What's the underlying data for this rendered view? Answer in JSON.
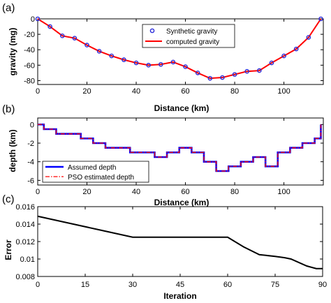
{
  "colors": {
    "assumed": "#0000ff",
    "estimated": "#ff0000",
    "synthetic": "#2b2bd9",
    "computed": "#ff0000",
    "error": "#000000"
  },
  "panels": [
    {
      "label": "(a)"
    },
    {
      "label": "(b)"
    },
    {
      "label": "(c)"
    }
  ],
  "chart_data": [
    {
      "type": "scatter",
      "xlabel": "Distance (km)",
      "ylabel": "gravity (mg)",
      "xlim": [
        0,
        116
      ],
      "ylim": [
        -85,
        0
      ],
      "xticks": [
        0,
        20,
        40,
        60,
        80,
        100
      ],
      "yticks": [
        0,
        -20,
        -40,
        -60,
        -80
      ],
      "legend_position": "top-center",
      "series": [
        {
          "name": "Synthetic gravity",
          "style": "markers",
          "x": [
            0,
            5,
            10,
            15,
            20,
            25,
            30,
            35,
            40,
            45,
            50,
            55,
            60,
            65,
            70,
            75,
            80,
            85,
            90,
            95,
            100,
            105,
            110,
            115
          ],
          "y": [
            0,
            -10,
            -22,
            -25,
            -34,
            -42,
            -48,
            -53,
            -57,
            -60,
            -59,
            -56,
            -62,
            -70,
            -77,
            -76,
            -72,
            -68,
            -67,
            -57,
            -48,
            -39,
            -24,
            0
          ]
        },
        {
          "name": "computed gravity",
          "style": "line",
          "x": [
            0,
            5,
            10,
            15,
            20,
            25,
            30,
            35,
            40,
            45,
            50,
            55,
            60,
            65,
            70,
            75,
            80,
            85,
            90,
            95,
            100,
            105,
            110,
            115
          ],
          "y": [
            0,
            -10,
            -22,
            -25,
            -34,
            -42,
            -48,
            -53,
            -57,
            -60,
            -59,
            -56,
            -62,
            -70,
            -77,
            -76,
            -72,
            -68,
            -67,
            -57,
            -48,
            -39,
            -24,
            0
          ]
        }
      ]
    },
    {
      "type": "line",
      "xlabel": "Distance (km)",
      "ylabel": "depth (km)",
      "xlim": [
        0,
        116
      ],
      "ylim": [
        -6.5,
        0.7
      ],
      "xticks": [
        0,
        20,
        40,
        60,
        80,
        100
      ],
      "yticks": [
        0,
        -2,
        -4,
        -6
      ],
      "legend_position": "bottom-left",
      "step_x": [
        0,
        2.5,
        7.5,
        12.5,
        17.5,
        22.5,
        27.5,
        32.5,
        37.5,
        42.5,
        47.5,
        52.5,
        57.5,
        62.5,
        67.5,
        72.5,
        77.5,
        82.5,
        87.5,
        92.5,
        97.5,
        102.5,
        107.5,
        112.5,
        115
      ],
      "series": [
        {
          "name": "Assumed depth",
          "style": "solid",
          "depth": [
            0,
            -0.5,
            -1.0,
            -1.0,
            -1.5,
            -2.0,
            -2.5,
            -2.5,
            -3.0,
            -3.0,
            -3.5,
            -3.0,
            -2.5,
            -3.0,
            -4.0,
            -5.0,
            -4.5,
            -4.0,
            -3.5,
            -4.5,
            -3.0,
            -2.5,
            -2.0,
            -1.5,
            0
          ]
        },
        {
          "name": "PSO estimated depth",
          "style": "dash-dot",
          "depth": [
            0,
            -0.5,
            -1.0,
            -1.0,
            -1.5,
            -2.0,
            -2.5,
            -2.5,
            -3.0,
            -3.0,
            -3.5,
            -3.0,
            -2.5,
            -3.0,
            -4.0,
            -5.0,
            -4.5,
            -4.0,
            -3.5,
            -4.5,
            -3.0,
            -2.5,
            -2.0,
            -1.5,
            0
          ]
        }
      ]
    },
    {
      "type": "line",
      "xlabel": "Iteration",
      "ylabel": "Error",
      "xlim": [
        0,
        90
      ],
      "ylim": [
        0.008,
        0.016
      ],
      "xticks": [
        0,
        15,
        30,
        45,
        60,
        75,
        90
      ],
      "yticks": [
        "0.008",
        "0.01",
        "0.012",
        "0.014",
        "0.016"
      ],
      "series": [
        {
          "style": "solid",
          "x": [
            0,
            10,
            20,
            30,
            40,
            50,
            60,
            65,
            70,
            75,
            78,
            80,
            85,
            88,
            90
          ],
          "y": [
            0.0149,
            0.0141,
            0.0133,
            0.0125,
            0.0125,
            0.0125,
            0.0125,
            0.0114,
            0.0105,
            0.0103,
            0.01015,
            0.01,
            0.0092,
            0.0089,
            0.0089
          ]
        }
      ]
    }
  ]
}
